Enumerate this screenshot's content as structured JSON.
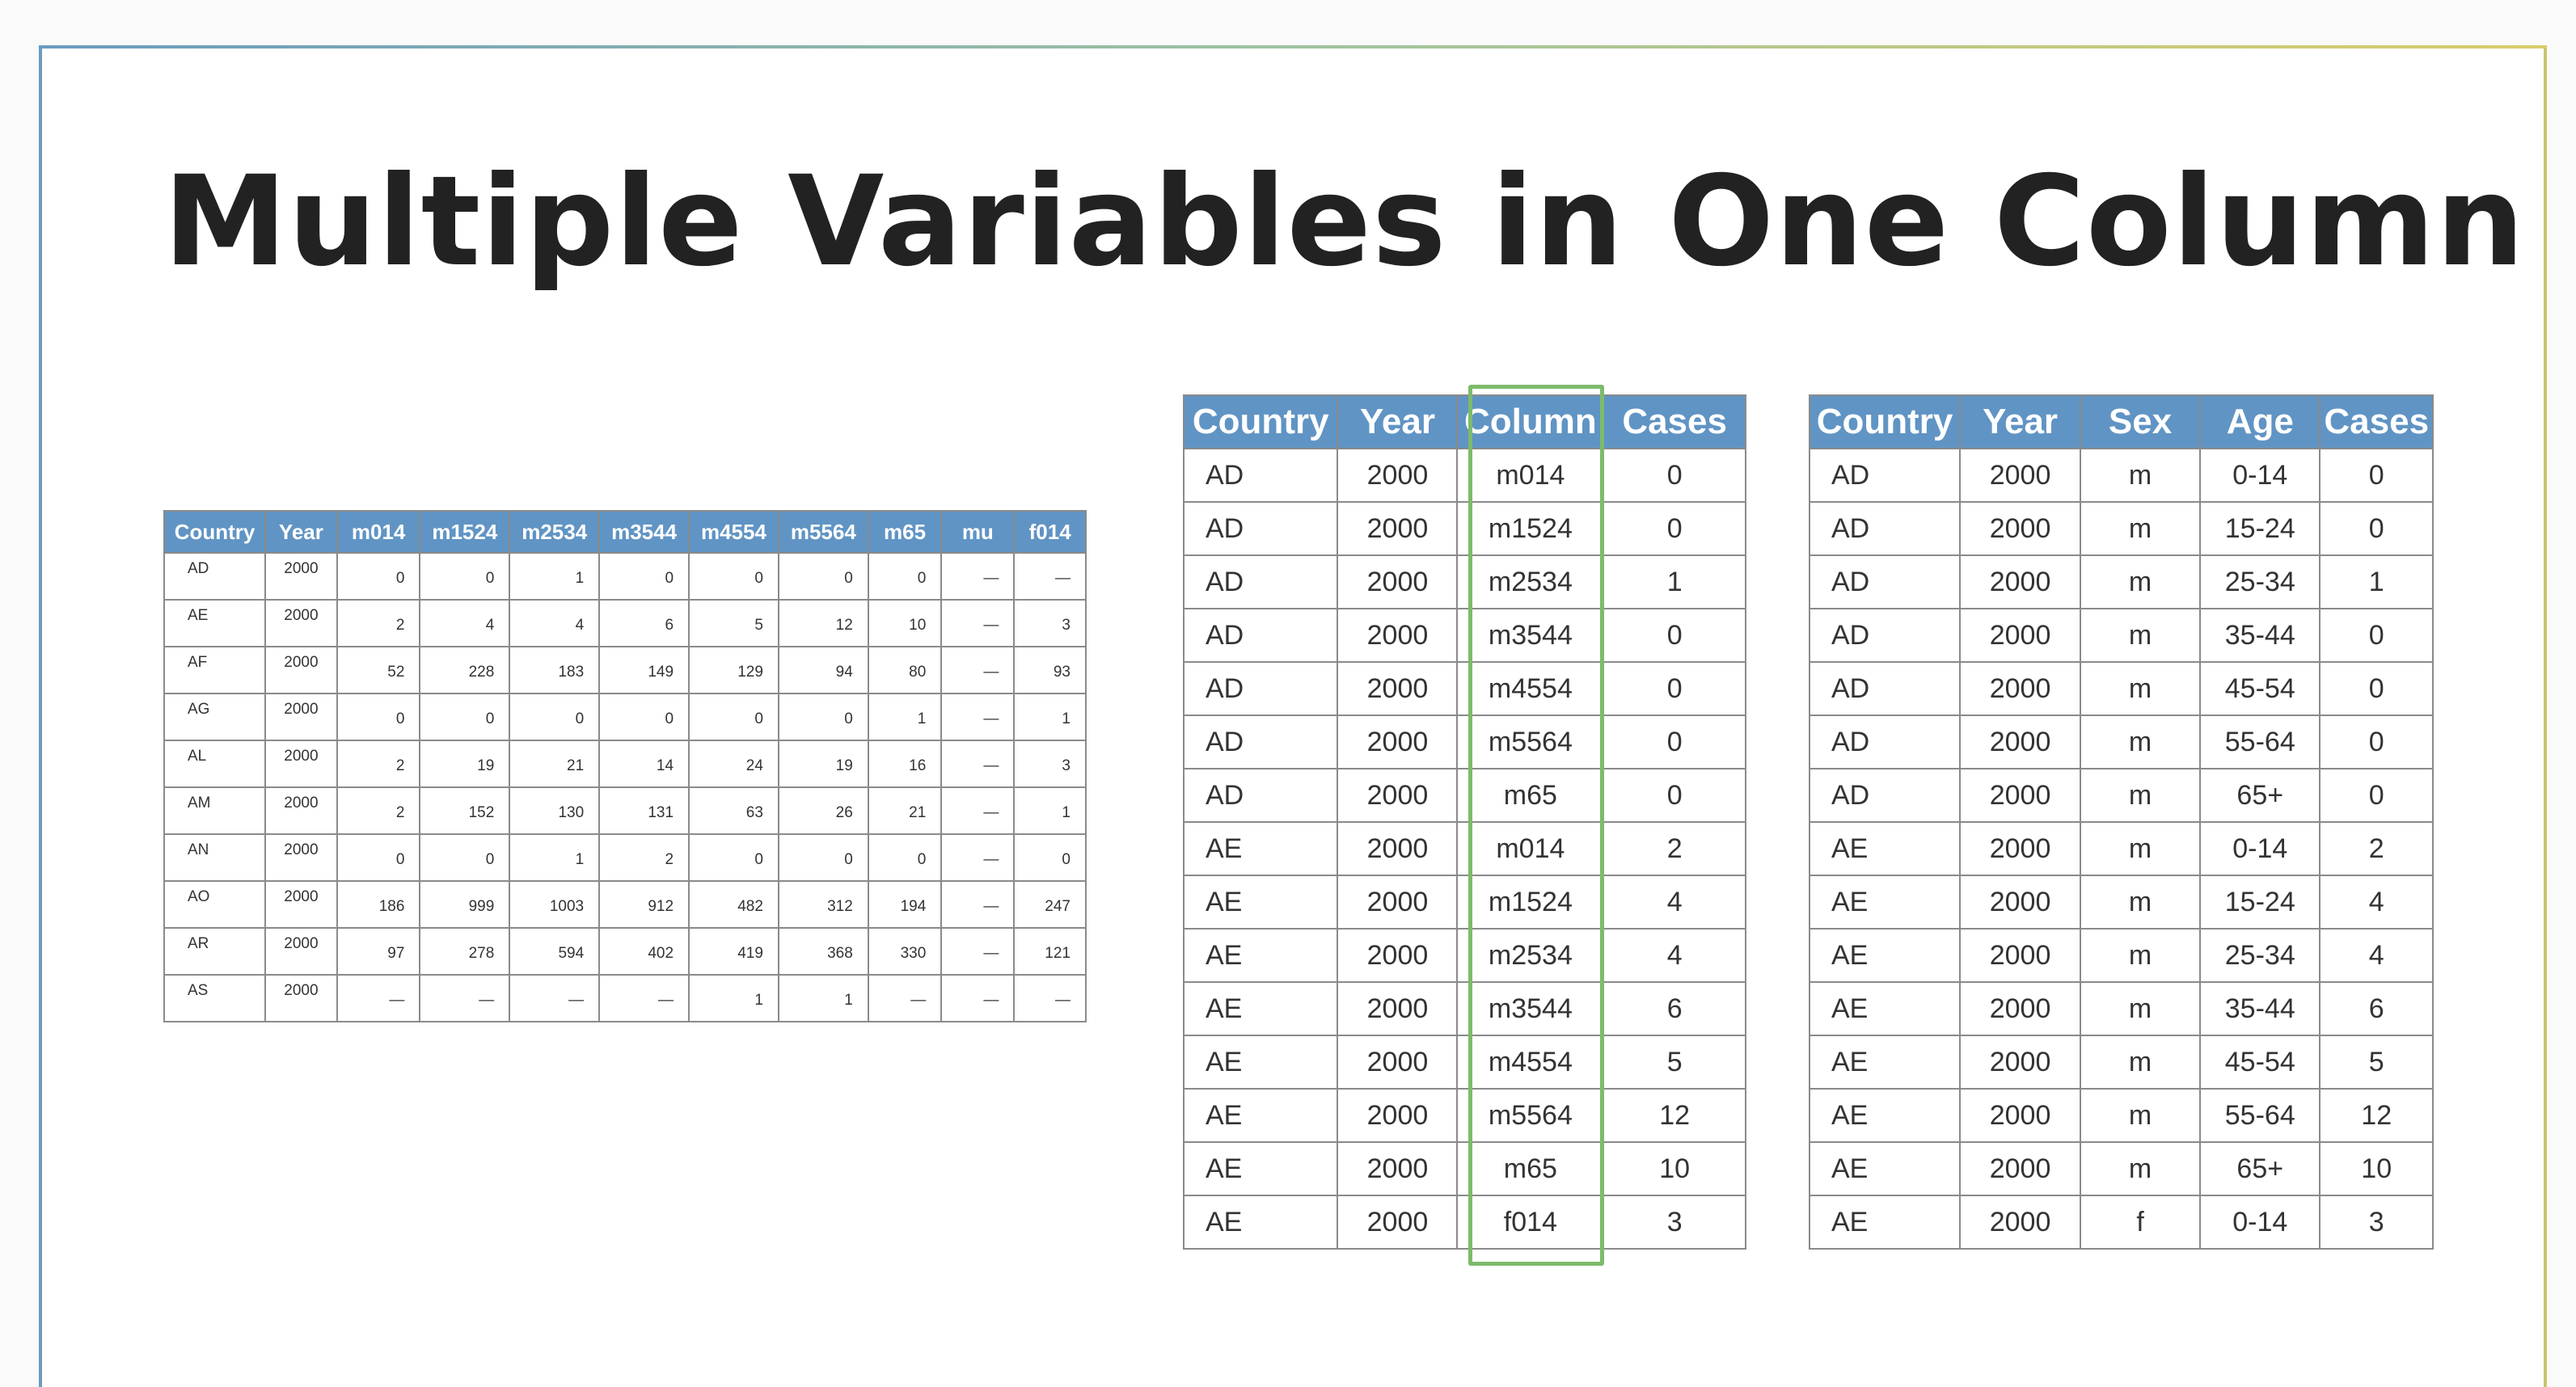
{
  "slide": {
    "title": "Multiple Variables in One Column"
  },
  "wide_table": {
    "headers": [
      "Country",
      "Year",
      "m014",
      "m1524",
      "m2534",
      "m3544",
      "m4554",
      "m5564",
      "m65",
      "mu",
      "f014"
    ],
    "rows": [
      [
        "AD",
        "2000",
        "0",
        "0",
        "1",
        "0",
        "0",
        "0",
        "0",
        "—",
        "—"
      ],
      [
        "AE",
        "2000",
        "2",
        "4",
        "4",
        "6",
        "5",
        "12",
        "10",
        "—",
        "3"
      ],
      [
        "AF",
        "2000",
        "52",
        "228",
        "183",
        "149",
        "129",
        "94",
        "80",
        "—",
        "93"
      ],
      [
        "AG",
        "2000",
        "0",
        "0",
        "0",
        "0",
        "0",
        "0",
        "1",
        "—",
        "1"
      ],
      [
        "AL",
        "2000",
        "2",
        "19",
        "21",
        "14",
        "24",
        "19",
        "16",
        "—",
        "3"
      ],
      [
        "AM",
        "2000",
        "2",
        "152",
        "130",
        "131",
        "63",
        "26",
        "21",
        "—",
        "1"
      ],
      [
        "AN",
        "2000",
        "0",
        "0",
        "1",
        "2",
        "0",
        "0",
        "0",
        "—",
        "0"
      ],
      [
        "AO",
        "2000",
        "186",
        "999",
        "1003",
        "912",
        "482",
        "312",
        "194",
        "—",
        "247"
      ],
      [
        "AR",
        "2000",
        "97",
        "278",
        "594",
        "402",
        "419",
        "368",
        "330",
        "—",
        "121"
      ],
      [
        "AS",
        "2000",
        "—",
        "—",
        "—",
        "—",
        "1",
        "1",
        "—",
        "—",
        "—"
      ]
    ]
  },
  "long_table": {
    "headers": [
      "Country",
      "Year",
      "Column",
      "Cases"
    ],
    "rows": [
      [
        "AD",
        "2000",
        "m014",
        "0"
      ],
      [
        "AD",
        "2000",
        "m1524",
        "0"
      ],
      [
        "AD",
        "2000",
        "m2534",
        "1"
      ],
      [
        "AD",
        "2000",
        "m3544",
        "0"
      ],
      [
        "AD",
        "2000",
        "m4554",
        "0"
      ],
      [
        "AD",
        "2000",
        "m5564",
        "0"
      ],
      [
        "AD",
        "2000",
        "m65",
        "0"
      ],
      [
        "AE",
        "2000",
        "m014",
        "2"
      ],
      [
        "AE",
        "2000",
        "m1524",
        "4"
      ],
      [
        "AE",
        "2000",
        "m2534",
        "4"
      ],
      [
        "AE",
        "2000",
        "m3544",
        "6"
      ],
      [
        "AE",
        "2000",
        "m4554",
        "5"
      ],
      [
        "AE",
        "2000",
        "m5564",
        "12"
      ],
      [
        "AE",
        "2000",
        "m65",
        "10"
      ],
      [
        "AE",
        "2000",
        "f014",
        "3"
      ]
    ]
  },
  "tidy_table": {
    "headers": [
      "Country",
      "Year",
      "Sex",
      "Age",
      "Cases"
    ],
    "rows": [
      [
        "AD",
        "2000",
        "m",
        "0-14",
        "0"
      ],
      [
        "AD",
        "2000",
        "m",
        "15-24",
        "0"
      ],
      [
        "AD",
        "2000",
        "m",
        "25-34",
        "1"
      ],
      [
        "AD",
        "2000",
        "m",
        "35-44",
        "0"
      ],
      [
        "AD",
        "2000",
        "m",
        "45-54",
        "0"
      ],
      [
        "AD",
        "2000",
        "m",
        "55-64",
        "0"
      ],
      [
        "AD",
        "2000",
        "m",
        "65+",
        "0"
      ],
      [
        "AE",
        "2000",
        "m",
        "0-14",
        "2"
      ],
      [
        "AE",
        "2000",
        "m",
        "15-24",
        "4"
      ],
      [
        "AE",
        "2000",
        "m",
        "25-34",
        "4"
      ],
      [
        "AE",
        "2000",
        "m",
        "35-44",
        "6"
      ],
      [
        "AE",
        "2000",
        "m",
        "45-54",
        "5"
      ],
      [
        "AE",
        "2000",
        "m",
        "55-64",
        "12"
      ],
      [
        "AE",
        "2000",
        "m",
        "65+",
        "10"
      ],
      [
        "AE",
        "2000",
        "f",
        "0-14",
        "3"
      ]
    ]
  },
  "colors": {
    "header_bg": "#6094c4",
    "highlight": "#7dbb6b",
    "border": "#8a8a8a"
  }
}
